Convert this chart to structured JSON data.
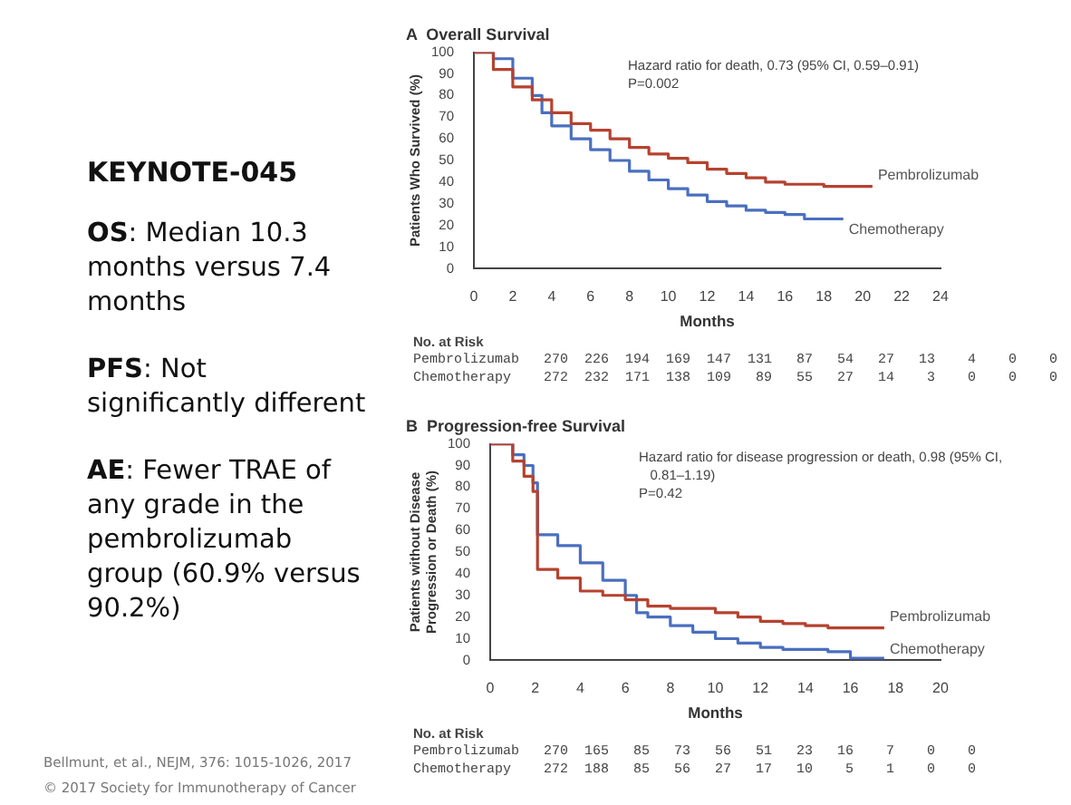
{
  "chart_data": [
    {
      "type": "other",
      "title": "KEYNOTE-045",
      "annotations": [
        "OS:  Median 10.3 months versus 7.4 months",
        "PFS:  Not significantly different",
        "AE:  Fewer TRAE of any grade in the pembrolizumab group (60.9% versus 90.2%)",
        "Bellmunt, et al., NEJM, 376: 1015-1026, 2017",
        "© 2017 Society for Immunotherapy of Cancer"
      ]
    },
    {
      "type": "step",
      "title": "A  Overall Survival",
      "xlabel": "Months",
      "ylabel": "Patients Who Survived (%)",
      "xlim": [
        0,
        24
      ],
      "xticks": [
        0,
        2,
        4,
        6,
        8,
        10,
        12,
        14,
        16,
        18,
        20,
        22,
        24
      ],
      "ylim": [
        0,
        100
      ],
      "yticks": [
        0,
        10,
        20,
        30,
        40,
        50,
        60,
        70,
        80,
        90,
        100
      ],
      "grid": false,
      "legend": false,
      "marker": "none",
      "annotations": [
        "Hazard ratio for death, 0.73 (95% CI, 0.59–0.91)",
        "P=0.002",
        "No. at Risk",
        "Pembrolizumab   270  226  194  169  147  131   87   54   27   13    4    0    0",
        "Chemotherapy    272  232  171  138  109   89   55   27   14    3    0    0    0"
      ],
      "series": [
        {
          "name": "Pembrolizumab",
          "color": "#b5422f",
          "x": [
            0,
            1,
            2,
            3,
            4,
            5,
            6,
            7,
            8,
            9,
            10,
            11,
            12,
            13,
            14,
            15,
            16,
            18,
            20.5
          ],
          "values": [
            100,
            92,
            84,
            78,
            72,
            67,
            64,
            60,
            56,
            53,
            51,
            49,
            46,
            44,
            42,
            40,
            39,
            38,
            38
          ]
        },
        {
          "name": "Chemotherapy",
          "color": "#4a6fbf",
          "x": [
            0,
            1,
            2,
            3,
            3.5,
            4,
            5,
            6,
            7,
            8,
            9,
            10,
            11,
            12,
            13,
            14,
            15,
            16,
            17,
            19
          ],
          "values": [
            100,
            97,
            88,
            80,
            72,
            66,
            60,
            55,
            50,
            45,
            41,
            37,
            34,
            31,
            29,
            27,
            26,
            25,
            23,
            23
          ]
        }
      ]
    },
    {
      "type": "step",
      "title": "B  Progression-free Survival",
      "xlabel": "Months",
      "ylabel": "Patients without Disease Progression or Death (%)",
      "xlim": [
        0,
        20
      ],
      "xticks": [
        0,
        2,
        4,
        6,
        8,
        10,
        12,
        14,
        16,
        18,
        20
      ],
      "ylim": [
        0,
        100
      ],
      "yticks": [
        0,
        10,
        20,
        30,
        40,
        50,
        60,
        70,
        80,
        90,
        100
      ],
      "grid": false,
      "legend": false,
      "marker": "none",
      "annotations": [
        "Hazard ratio for disease progression or death, 0.98 (95% CI, 0.81–1.19)",
        "P=0.42",
        "No. at Risk",
        "Pembrolizumab   270  165   85   73   56   51   23   16    7    0    0",
        "Chemotherapy    272  188   85   56   27   17   10    5    1    0    0"
      ],
      "series": [
        {
          "name": "Pembrolizumab",
          "color": "#b5422f",
          "x": [
            0,
            1,
            1.5,
            1.9,
            2.1,
            3,
            4,
            5,
            6,
            7,
            8,
            10,
            11,
            12,
            13,
            14,
            15,
            17.5
          ],
          "values": [
            100,
            92,
            85,
            78,
            42,
            38,
            32,
            30,
            28,
            25,
            24,
            22,
            20,
            18,
            17,
            16,
            15,
            15
          ]
        },
        {
          "name": "Chemotherapy",
          "color": "#4a6fbf",
          "x": [
            0,
            1,
            1.5,
            1.9,
            2.1,
            3,
            4,
            5,
            6,
            6.5,
            7,
            8,
            9,
            10,
            11,
            12,
            13,
            14,
            15,
            16,
            17.5
          ],
          "values": [
            100,
            95,
            90,
            82,
            58,
            53,
            45,
            37,
            30,
            22,
            20,
            16,
            13,
            10,
            8,
            6,
            5,
            5,
            4,
            1,
            1
          ]
        }
      ]
    }
  ]
}
